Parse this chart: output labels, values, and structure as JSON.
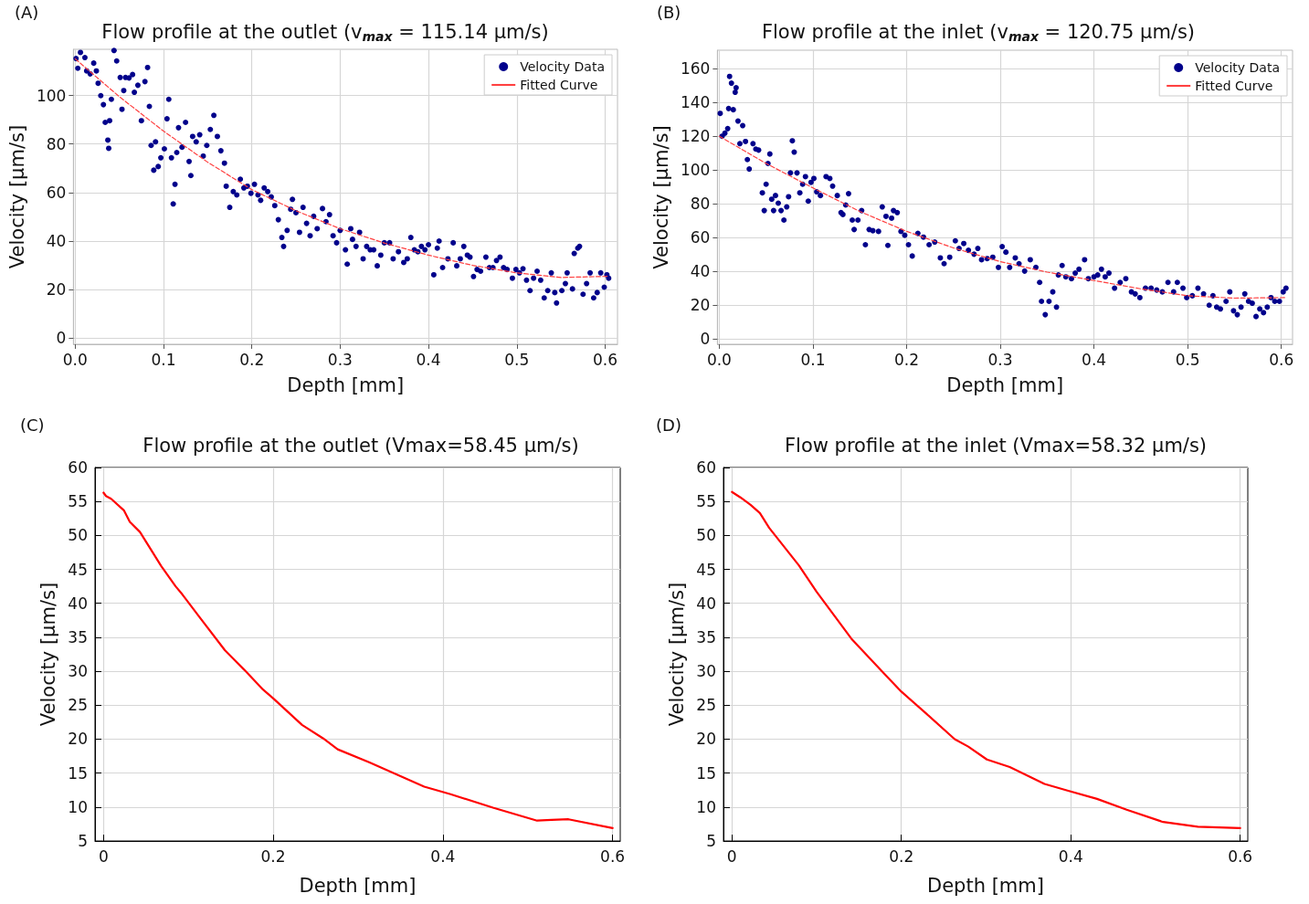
{
  "chart_data": [
    {
      "type": "scatter",
      "title": "Flow profile at the outlet (v$_{max}$ = 115.14 μm/s)",
      "xlabel": "Depth [mm]",
      "ylabel": "Velocity [μm/s]",
      "annotations": [
        "(A)"
      ],
      "xlim": [
        -0.002,
        0.614
      ],
      "ylim": [
        -2.5,
        119
      ],
      "xticks": [
        {
          "value": 0,
          "label": "0.0"
        },
        0.1,
        0.2,
        0.3,
        0.4,
        0.5,
        0.6
      ],
      "yticks": [
        0,
        20,
        40,
        60,
        80,
        100
      ],
      "grid": true,
      "legend": "top right",
      "series": [
        {
          "name": "Velocity Data",
          "type": "scatter",
          "marker": "circle",
          "color": "#00008b",
          "x": [
            0.001,
            0.003,
            0.006,
            0.011,
            0.013,
            0.017,
            0.021,
            0.024,
            0.026,
            0.029,
            0.032,
            0.034,
            0.037,
            0.038,
            0.039,
            0.041,
            0.044,
            0.047,
            0.051,
            0.053,
            0.055,
            0.057,
            0.061,
            0.065,
            0.067,
            0.071,
            0.075,
            0.079,
            0.082,
            0.084,
            0.086,
            0.089,
            0.091,
            0.094,
            0.097,
            0.101,
            0.104,
            0.106,
            0.109,
            0.111,
            0.113,
            0.115,
            0.117,
            0.121,
            0.125,
            0.129,
            0.131,
            0.133,
            0.137,
            0.141,
            0.145,
            0.149,
            0.153,
            0.157,
            0.161,
            0.165,
            0.169,
            0.171,
            0.175,
            0.179,
            0.183,
            0.187,
            0.191,
            0.195,
            0.199,
            0.203,
            0.207,
            0.21,
            0.214,
            0.218,
            0.222,
            0.226,
            0.23,
            0.234,
            0.236,
            0.24,
            0.244,
            0.246,
            0.25,
            0.254,
            0.258,
            0.262,
            0.266,
            0.27,
            0.274,
            0.28,
            0.284,
            0.288,
            0.292,
            0.296,
            0.3,
            0.306,
            0.308,
            0.312,
            0.314,
            0.318,
            0.322,
            0.326,
            0.33,
            0.334,
            0.338,
            0.342,
            0.346,
            0.35,
            0.356,
            0.36,
            0.366,
            0.372,
            0.376,
            0.38,
            0.384,
            0.388,
            0.392,
            0.396,
            0.4,
            0.406,
            0.41,
            0.412,
            0.416,
            0.422,
            0.428,
            0.432,
            0.436,
            0.44,
            0.444,
            0.447,
            0.451,
            0.455,
            0.459,
            0.465,
            0.469,
            0.473,
            0.477,
            0.481,
            0.485,
            0.489,
            0.495,
            0.499,
            0.503,
            0.507,
            0.511,
            0.515,
            0.519,
            0.523,
            0.527,
            0.531,
            0.535,
            0.539,
            0.543,
            0.545,
            0.551,
            0.555,
            0.557,
            0.563,
            0.565,
            0.569,
            0.571,
            0.575,
            0.579,
            0.583,
            0.587,
            0.591,
            0.595,
            0.599,
            0.602,
            0.604
          ],
          "values": [
            115.2,
            111.2,
            117.7,
            115.6,
            110.1,
            108.9,
            113.3,
            110.1,
            105.0,
            99.9,
            96.2,
            88.9,
            81.6,
            78.2,
            89.6,
            98.4,
            118.5,
            114.2,
            107.4,
            94.3,
            102.0,
            107.4,
            107.2,
            108.6,
            101.3,
            104.2,
            89.6,
            105.7,
            111.5,
            95.5,
            79.4,
            69.2,
            80.9,
            70.7,
            74.3,
            78.0,
            90.4,
            98.4,
            74.3,
            55.3,
            63.4,
            76.5,
            86.7,
            78.7,
            88.9,
            72.8,
            67.0,
            83.1,
            80.9,
            83.8,
            75.0,
            79.4,
            86.0,
            91.8,
            83.1,
            77.2,
            72.1,
            62.6,
            53.9,
            60.4,
            59.0,
            65.5,
            61.9,
            62.6,
            59.7,
            63.4,
            59.0,
            56.8,
            61.9,
            60.4,
            58.2,
            54.6,
            48.8,
            41.5,
            37.8,
            44.4,
            53.1,
            57.2,
            51.7,
            43.6,
            53.9,
            47.3,
            42.2,
            50.2,
            45.1,
            53.4,
            48.0,
            50.9,
            42.2,
            39.3,
            44.4,
            36.4,
            30.5,
            45.1,
            40.7,
            37.8,
            43.6,
            32.7,
            37.8,
            36.4,
            36.4,
            29.8,
            34.2,
            39.3,
            39.3,
            32.7,
            35.6,
            31.2,
            32.7,
            41.5,
            36.4,
            35.6,
            37.8,
            36.4,
            38.5,
            26.1,
            37.1,
            40.0,
            29.1,
            32.7,
            39.3,
            29.8,
            32.7,
            37.8,
            34.2,
            33.4,
            25.4,
            28.3,
            27.6,
            33.4,
            29.1,
            29.1,
            32.0,
            33.4,
            29.1,
            28.3,
            24.7,
            28.3,
            26.9,
            28.6,
            23.9,
            19.6,
            24.7,
            27.6,
            23.9,
            16.6,
            19.6,
            26.9,
            18.8,
            14.5,
            19.6,
            22.5,
            26.9,
            20.3,
            34.9,
            37.1,
            37.8,
            18.1,
            22.5,
            26.9,
            16.6,
            18.8,
            26.9,
            21.0,
            26.1,
            24.7
          ]
        },
        {
          "name": "Fitted Curve",
          "type": "line",
          "color": "#ff4040",
          "line_style": "dashed",
          "x": [
            0,
            0.05,
            0.1,
            0.15,
            0.2,
            0.25,
            0.3,
            0.35,
            0.4,
            0.45,
            0.5,
            0.55,
            0.604
          ],
          "values": [
            115.1,
            99.5,
            85.3,
            72.5,
            61.2,
            52.5,
            45.1,
            39.2,
            34.2,
            30.0,
            26.9,
            25.0,
            25.5
          ]
        }
      ]
    },
    {
      "type": "scatter",
      "title": "Flow profile at the inlet (v$_{max}$ = 120.75 μm/s)",
      "xlabel": "Depth [mm]",
      "ylabel": "Velocity [μm/s]",
      "annotations": [
        "(B)"
      ],
      "xlim": [
        -0.002,
        0.612
      ],
      "ylim": [
        -3,
        171
      ],
      "xticks": [
        {
          "value": 0,
          "label": "0.0"
        },
        0.1,
        0.2,
        0.3,
        0.4,
        0.5,
        0.6
      ],
      "yticks": [
        0,
        20,
        40,
        60,
        80,
        100,
        120,
        140,
        160
      ],
      "grid": true,
      "legend": "top right",
      "series": [
        {
          "name": "Velocity Data",
          "type": "scatter",
          "marker": "circle",
          "color": "#00008b",
          "x": [
            0.001,
            0.003,
            0.006,
            0.009,
            0.011,
            0.013,
            0.01,
            0.015,
            0.017,
            0.018,
            0.02,
            0.022,
            0.025,
            0.028,
            0.03,
            0.032,
            0.036,
            0.039,
            0.042,
            0.046,
            0.048,
            0.05,
            0.052,
            0.054,
            0.056,
            0.058,
            0.06,
            0.063,
            0.066,
            0.069,
            0.072,
            0.074,
            0.076,
            0.078,
            0.08,
            0.083,
            0.086,
            0.089,
            0.092,
            0.095,
            0.098,
            0.101,
            0.104,
            0.108,
            0.114,
            0.118,
            0.121,
            0.126,
            0.13,
            0.132,
            0.135,
            0.138,
            0.142,
            0.144,
            0.148,
            0.152,
            0.156,
            0.16,
            0.164,
            0.17,
            0.174,
            0.178,
            0.18,
            0.184,
            0.186,
            0.19,
            0.194,
            0.198,
            0.202,
            0.206,
            0.212,
            0.218,
            0.224,
            0.23,
            0.236,
            0.24,
            0.246,
            0.252,
            0.256,
            0.261,
            0.266,
            0.272,
            0.276,
            0.28,
            0.286,
            0.292,
            0.298,
            0.302,
            0.306,
            0.31,
            0.316,
            0.32,
            0.326,
            0.332,
            0.338,
            0.342,
            0.344,
            0.348,
            0.352,
            0.356,
            0.36,
            0.362,
            0.366,
            0.37,
            0.376,
            0.38,
            0.384,
            0.39,
            0.394,
            0.4,
            0.404,
            0.408,
            0.412,
            0.416,
            0.422,
            0.428,
            0.434,
            0.44,
            0.444,
            0.449,
            0.455,
            0.461,
            0.467,
            0.473,
            0.479,
            0.485,
            0.489,
            0.495,
            0.499,
            0.505,
            0.511,
            0.517,
            0.523,
            0.527,
            0.531,
            0.535,
            0.541,
            0.545,
            0.549,
            0.553,
            0.557,
            0.561,
            0.565,
            0.569,
            0.573,
            0.577,
            0.581,
            0.585,
            0.589,
            0.593,
            0.598,
            0.602,
            0.605
          ],
          "values": [
            133.6,
            120.1,
            121.9,
            124.6,
            155.5,
            151.5,
            136.5,
            135.8,
            146.1,
            148.8,
            129.1,
            115.7,
            126.4,
            117.0,
            106.3,
            100.7,
            115.7,
            112.5,
            111.9,
            86.6,
            76.1,
            91.7,
            104.0,
            109.6,
            82.8,
            76.1,
            85.0,
            80.5,
            76.1,
            70.5,
            78.3,
            84.3,
            98.4,
            117.4,
            110.7,
            98.4,
            86.6,
            91.7,
            96.2,
            81.7,
            92.8,
            95.1,
            87.2,
            85.0,
            96.2,
            95.1,
            90.6,
            85.0,
            74.9,
            73.8,
            79.4,
            86.1,
            70.5,
            64.9,
            70.5,
            76.1,
            55.9,
            64.9,
            64.2,
            63.8,
            78.3,
            72.7,
            55.5,
            71.6,
            76.1,
            74.9,
            63.8,
            61.5,
            55.9,
            49.2,
            62.6,
            60.4,
            55.9,
            57.5,
            48.1,
            44.7,
            48.5,
            58.2,
            53.7,
            56.6,
            52.6,
            50.3,
            53.7,
            47.0,
            47.7,
            48.5,
            42.5,
            54.8,
            51.5,
            42.5,
            48.1,
            44.7,
            40.3,
            47.0,
            42.5,
            33.6,
            22.4,
            14.5,
            22.4,
            28.0,
            19.0,
            38.0,
            43.6,
            36.9,
            35.8,
            39.1,
            41.4,
            47.0,
            35.8,
            36.9,
            38.0,
            41.4,
            36.9,
            39.1,
            30.2,
            33.6,
            35.8,
            28.0,
            26.8,
            24.6,
            30.2,
            30.2,
            29.1,
            28.0,
            33.6,
            28.0,
            33.6,
            30.2,
            24.6,
            25.7,
            30.2,
            26.8,
            20.1,
            25.7,
            19.0,
            17.9,
            22.4,
            28.0,
            16.8,
            14.5,
            19.0,
            26.8,
            22.4,
            21.3,
            13.4,
            17.9,
            15.7,
            19.0,
            24.6,
            22.4,
            22.4,
            28.0,
            30.2
          ]
        },
        {
          "name": "Fitted Curve",
          "type": "line",
          "color": "#ff4040",
          "line_style": "dashed",
          "x": [
            0,
            0.05,
            0.1,
            0.15,
            0.2,
            0.25,
            0.3,
            0.35,
            0.4,
            0.45,
            0.5,
            0.55,
            0.605
          ],
          "values": [
            120.1,
            104.0,
            89.5,
            75.6,
            63.8,
            54.0,
            45.9,
            39.7,
            34.7,
            29.8,
            25.7,
            24.3,
            24.6
          ]
        }
      ]
    },
    {
      "type": "line",
      "title": "Flow profile at the outlet (Vmax=58.45 μm/s)",
      "xlabel": "Depth [mm]",
      "ylabel": "Velocity [μm/s]",
      "annotations": [
        "(C)"
      ],
      "xlim": [
        -0.01,
        0.609
      ],
      "ylim": [
        5,
        60
      ],
      "xticks": [
        0,
        0.2,
        0.4,
        0.6
      ],
      "yticks": [
        5,
        10,
        15,
        20,
        25,
        30,
        35,
        40,
        45,
        50,
        55,
        60
      ],
      "grid": true,
      "color": "#ff0000",
      "x": [
        0,
        0.003,
        0.009,
        0.024,
        0.031,
        0.043,
        0.068,
        0.085,
        0.093,
        0.113,
        0.143,
        0.166,
        0.188,
        0.201,
        0.234,
        0.259,
        0.276,
        0.313,
        0.347,
        0.378,
        0.409,
        0.459,
        0.511,
        0.528,
        0.548,
        0.6
      ],
      "values": [
        56.3,
        55.8,
        55.4,
        53.7,
        52.0,
        50.5,
        45.5,
        42.5,
        41.3,
        38.0,
        33.1,
        30.2,
        27.3,
        25.9,
        22.1,
        20.1,
        18.5,
        16.6,
        14.7,
        13.0,
        11.9,
        9.9,
        8.0,
        8.1,
        8.2,
        6.9
      ]
    },
    {
      "type": "line",
      "title": "Flow profile at the inlet (Vmax=58.32 μm/s)",
      "xlabel": "Depth [mm]",
      "ylabel": "Velocity [μm/s]",
      "annotations": [
        "(D)"
      ],
      "xlim": [
        -0.01,
        0.609
      ],
      "ylim": [
        5,
        60
      ],
      "xticks": [
        0,
        0.2,
        0.4,
        0.6
      ],
      "yticks": [
        5,
        10,
        15,
        20,
        25,
        30,
        35,
        40,
        45,
        50,
        55,
        60
      ],
      "grid": true,
      "color": "#ff0000",
      "x": [
        0,
        0.01,
        0.022,
        0.033,
        0.044,
        0.079,
        0.1,
        0.122,
        0.141,
        0.18,
        0.2,
        0.229,
        0.263,
        0.279,
        0.301,
        0.328,
        0.369,
        0.397,
        0.431,
        0.466,
        0.509,
        0.55,
        0.6
      ],
      "values": [
        56.4,
        55.6,
        54.5,
        53.3,
        51.1,
        45.6,
        41.7,
        38.0,
        34.8,
        29.6,
        27.0,
        23.8,
        20.0,
        18.9,
        17.0,
        15.9,
        13.4,
        12.4,
        11.2,
        9.6,
        7.8,
        7.1,
        6.9
      ]
    }
  ]
}
